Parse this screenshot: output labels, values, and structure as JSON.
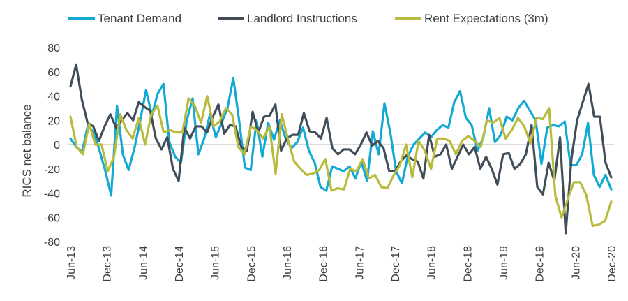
{
  "chart_data": {
    "type": "line",
    "ylabel": "RICS net balance",
    "xlabel": "",
    "ylim": [
      -80,
      80
    ],
    "yticks": [
      80,
      60,
      40,
      20,
      0,
      -20,
      -40,
      -60,
      -80
    ],
    "x_start": "Jun-13",
    "x_tick_labels": [
      "Jun-13",
      "Dec-13",
      "Jun-14",
      "Dec-14",
      "Jun-15",
      "Dec-15",
      "Jun-16",
      "Dec-16",
      "Jun-17",
      "Dec-17",
      "Jun-18",
      "Dec-18",
      "Jun-19",
      "Dec-19",
      "Jun-20",
      "Dec-20"
    ],
    "legend_position": "top",
    "series": [
      {
        "name": "Tenant Demand",
        "color": "#12a9d4",
        "values": [
          5,
          -2,
          -6,
          16,
          10,
          -5,
          -22,
          -42,
          32,
          -8,
          -21,
          -3,
          20,
          45,
          24,
          42,
          50,
          2,
          -10,
          -15,
          20,
          38,
          -8,
          5,
          25,
          6,
          18,
          30,
          55,
          20,
          -19,
          -21,
          20,
          -10,
          18,
          4,
          20,
          5,
          -3,
          2,
          14,
          -5,
          -15,
          -35,
          -38,
          -18,
          -20,
          -22,
          -18,
          -28,
          -14,
          -30,
          11,
          -8,
          34,
          10,
          -22,
          -32,
          -10,
          0,
          5,
          10,
          6,
          12,
          16,
          14,
          35,
          44,
          22,
          16,
          -5,
          6,
          30,
          2,
          8,
          23,
          20,
          30,
          36,
          28,
          20,
          -16,
          14,
          16,
          15,
          19,
          -17,
          -17,
          -8,
          18,
          -25,
          -35,
          -25,
          -37
        ]
      },
      {
        "name": "Landlord Instructions",
        "color": "#414e59",
        "values": [
          48,
          66,
          37,
          18,
          15,
          3,
          15,
          25,
          14,
          20,
          26,
          20,
          35,
          31,
          28,
          5,
          -4,
          6,
          -20,
          -30,
          14,
          5,
          15,
          15,
          10,
          23,
          33,
          9,
          16,
          15,
          -2,
          -5,
          27,
          10,
          23,
          24,
          33,
          -5,
          5,
          8,
          8,
          26,
          11,
          10,
          5,
          22,
          -3,
          -8,
          -4,
          -4,
          -8,
          0,
          10,
          -1,
          3,
          -3,
          -22,
          -22,
          -14,
          -9,
          -12,
          -14,
          -28,
          8,
          -10,
          -8,
          0,
          -20,
          -10,
          0,
          -8,
          -2,
          -20,
          -10,
          -20,
          -33,
          -8,
          -7,
          -20,
          -16,
          -8,
          16,
          -35,
          -41,
          -15,
          -30,
          6,
          -73,
          -12,
          20,
          35,
          50,
          23,
          23,
          -15,
          -27
        ]
      },
      {
        "name": "Rent Expectations (3m)",
        "color": "#b8bb3c",
        "values": [
          23,
          -2,
          -8,
          17,
          0,
          0,
          -22,
          -10,
          25,
          12,
          5,
          22,
          0,
          25,
          32,
          10,
          12,
          10,
          10,
          38,
          32,
          18,
          40,
          15,
          19,
          30,
          25,
          -2,
          -8,
          15,
          12,
          5,
          15,
          -24,
          25,
          4,
          -14,
          -20,
          -25,
          -24,
          -21,
          -12,
          -38,
          -36,
          -37,
          -20,
          -22,
          -12,
          -28,
          -25,
          -35,
          -36,
          -25,
          -17,
          0,
          -27,
          3,
          -5,
          -20,
          5,
          5,
          3,
          -8,
          3,
          7,
          3,
          -2,
          20,
          18,
          22,
          5,
          12,
          22,
          15,
          1,
          22,
          21,
          30,
          -42,
          -60,
          -45,
          -31,
          -31,
          -42,
          -67,
          -66,
          -63,
          -47
        ]
      }
    ]
  }
}
